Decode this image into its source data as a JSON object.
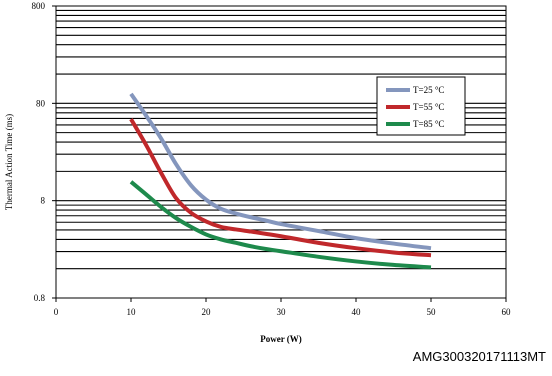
{
  "chart_data": {
    "type": "line",
    "title": "",
    "xlabel": "Power (W)",
    "ylabel": "Thermal Action Time (ms)",
    "xlim": [
      0,
      60
    ],
    "ylim": [
      0.8,
      800
    ],
    "y_scale": "log",
    "x_ticks": [
      0,
      10,
      20,
      30,
      40,
      50,
      60
    ],
    "y_ticks": [
      0.8,
      8,
      80,
      800
    ],
    "x_tick_labels": [
      "0",
      "10",
      "20",
      "30",
      "40",
      "50",
      "60"
    ],
    "y_tick_labels": [
      "0.8",
      "8",
      "80",
      "800"
    ],
    "grid": "horizontal",
    "legend_position": "right",
    "series": [
      {
        "name": "T=25 °C",
        "color": "#8496bd",
        "x": [
          10,
          12,
          14,
          16,
          18,
          20,
          22,
          24,
          26,
          28,
          30,
          35,
          40,
          45,
          50
        ],
        "y": [
          100,
          60,
          35,
          19,
          11.5,
          8.2,
          6.6,
          5.9,
          5.4,
          5.0,
          4.6,
          3.9,
          3.3,
          2.9,
          2.6
        ]
      },
      {
        "name": "T=55 °C",
        "color": "#c0282b",
        "x": [
          10,
          12,
          14,
          16,
          18,
          20,
          22,
          24,
          26,
          28,
          30,
          35,
          40,
          45,
          50
        ],
        "y": [
          55,
          30,
          15.5,
          8.5,
          6.0,
          4.9,
          4.3,
          4.05,
          3.85,
          3.65,
          3.45,
          2.95,
          2.6,
          2.35,
          2.2
        ]
      },
      {
        "name": "T=85 °C",
        "color": "#1e8a4c",
        "x": [
          10,
          12,
          14,
          16,
          18,
          20,
          22,
          24,
          26,
          28,
          30,
          35,
          40,
          45,
          50
        ],
        "y": [
          12.5,
          9.3,
          6.9,
          5.3,
          4.3,
          3.6,
          3.2,
          2.95,
          2.72,
          2.55,
          2.42,
          2.12,
          1.9,
          1.75,
          1.65
        ]
      }
    ]
  },
  "watermark": "AMG300320171113MT"
}
